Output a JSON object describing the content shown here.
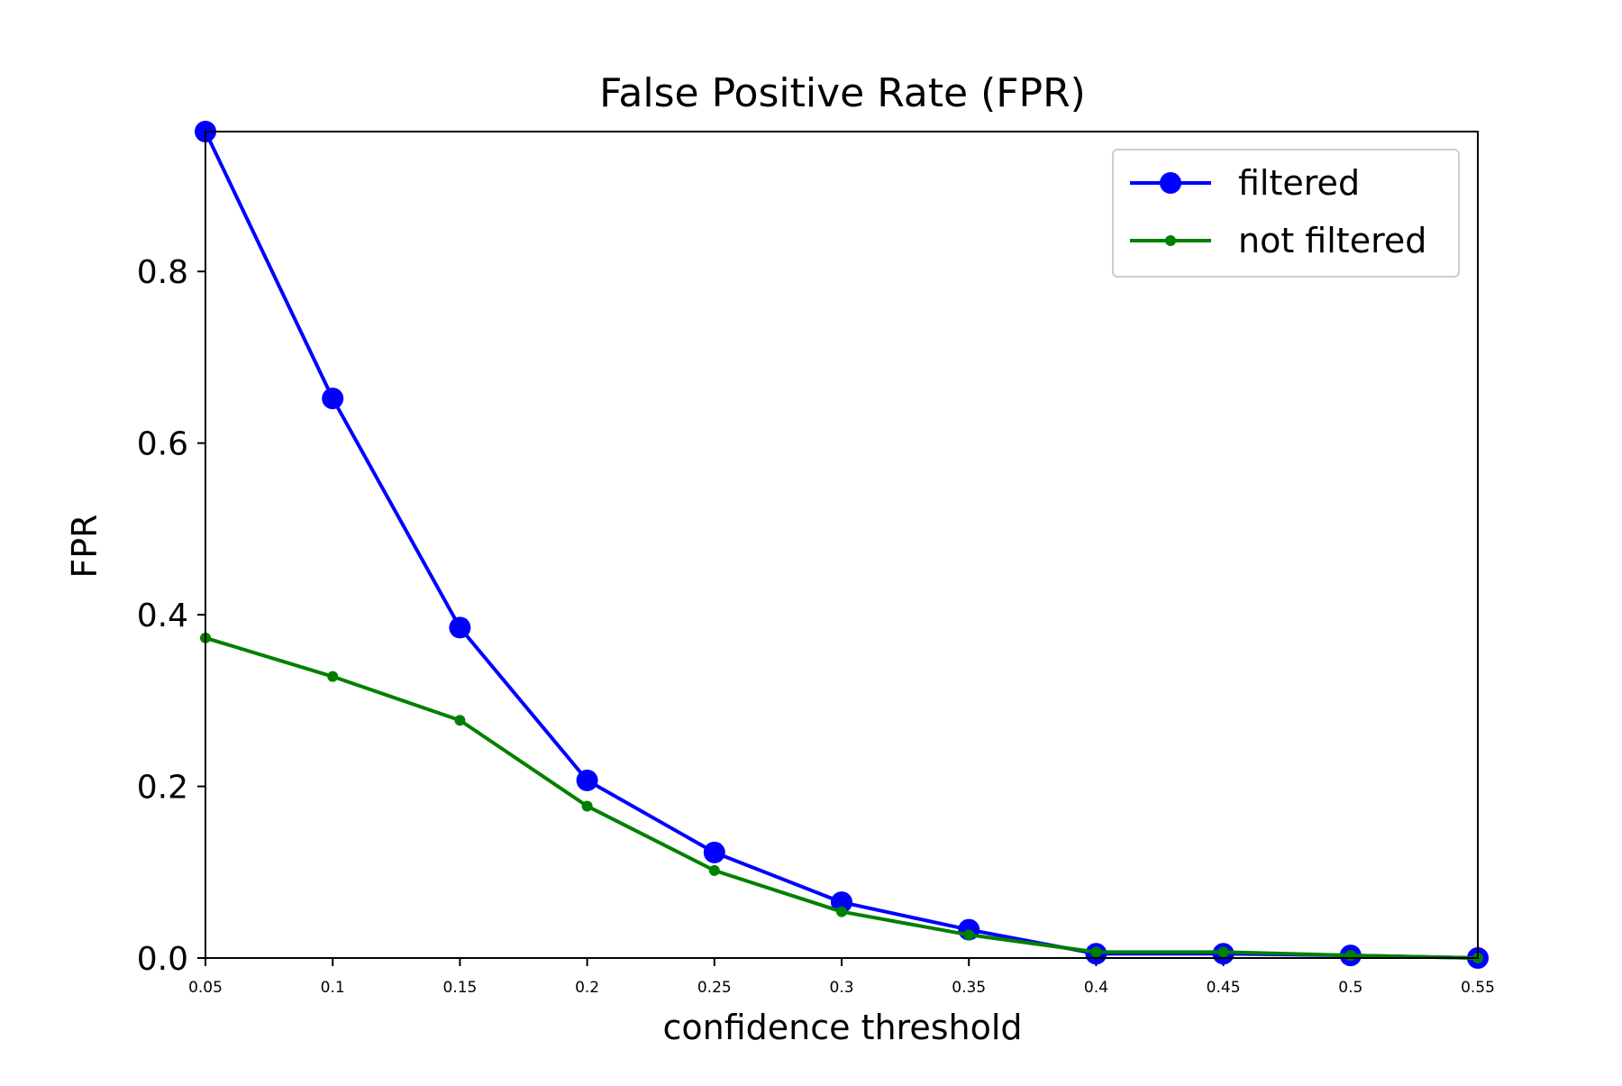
{
  "chart_data": {
    "type": "line",
    "title": "False Positive Rate (FPR)",
    "xlabel": "confidence threshold",
    "ylabel": "FPR",
    "x": [
      0.05,
      0.1,
      0.15,
      0.2,
      0.25,
      0.3,
      0.35,
      0.4,
      0.45,
      0.5,
      0.55
    ],
    "x_tick_labels": [
      "0.05",
      "0.1",
      "0.15",
      "0.2",
      "0.25",
      "0.3",
      "0.35",
      "0.4",
      "0.45",
      "0.5",
      "0.55"
    ],
    "y_ticks": [
      0.0,
      0.2,
      0.4,
      0.6,
      0.8
    ],
    "y_tick_labels": [
      "0.0",
      "0.2",
      "0.4",
      "0.6",
      "0.8"
    ],
    "xlim": [
      0.05,
      0.55
    ],
    "ylim": [
      0,
      0.963
    ],
    "grid": false,
    "legend_position": "top-right",
    "series": [
      {
        "name": "filtered",
        "color": "#0000ff",
        "marker": "large-circle",
        "values": [
          0.963,
          0.652,
          0.385,
          0.207,
          0.123,
          0.065,
          0.033,
          0.005,
          0.005,
          0.003,
          0.0
        ]
      },
      {
        "name": "not filtered",
        "color": "#008000",
        "marker": "small-circle",
        "values": [
          0.373,
          0.328,
          0.277,
          0.177,
          0.102,
          0.054,
          0.027,
          0.007,
          0.007,
          0.003,
          0.0
        ]
      }
    ]
  }
}
